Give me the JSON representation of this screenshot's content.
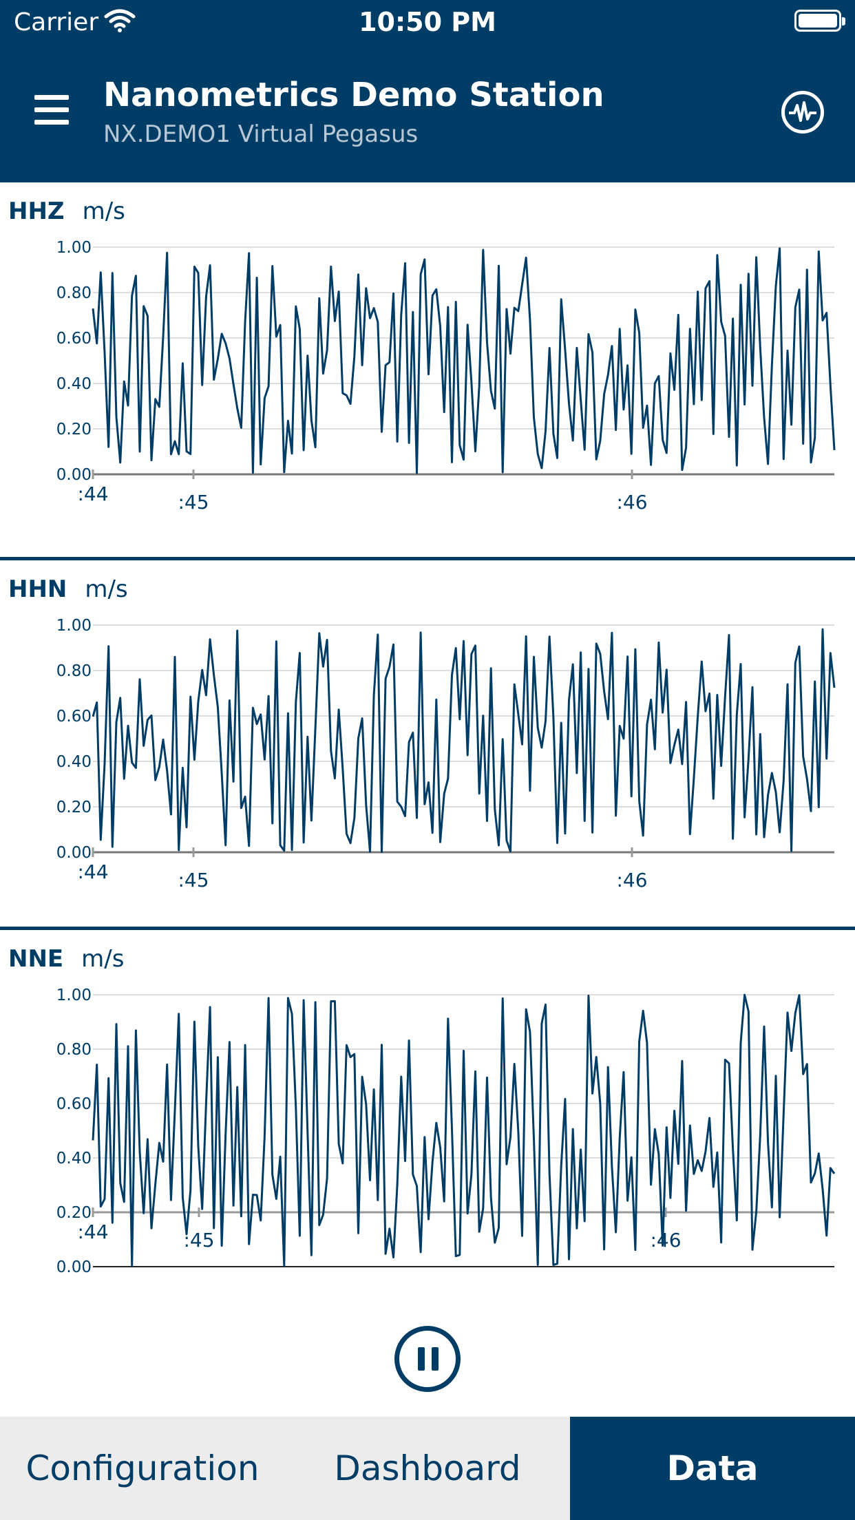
{
  "status_bar": {
    "carrier": "Carrier",
    "time": "10:50 PM"
  },
  "header": {
    "title": "Nanometrics Demo Station",
    "subtitle": "NX.DEMO1  Virtual Pegasus"
  },
  "channels": [
    {
      "name": "HHZ",
      "unit": "m/s",
      "y_ticks": [
        "1.00",
        "0.80",
        "0.60",
        "0.40",
        "0.20",
        "0.00"
      ],
      "time_ticks": [
        ":44",
        ":45",
        ":46"
      ]
    },
    {
      "name": "HHN",
      "unit": "m/s",
      "y_ticks": [
        "1.00",
        "0.80",
        "0.60",
        "0.40",
        "0.20",
        "0.00"
      ],
      "time_ticks": [
        ":44",
        ":45",
        ":46"
      ]
    },
    {
      "name": "NNE",
      "unit": "m/s",
      "y_ticks": [
        "1.00",
        "0.80",
        "0.60",
        "0.40",
        "0.20",
        "0.00"
      ],
      "time_ticks": [
        ":44",
        ":45",
        ":46"
      ]
    }
  ],
  "colors": {
    "brand": "#003d66",
    "tab_bg": "#ececec"
  },
  "tabs": [
    {
      "label": "Configuration",
      "active": false
    },
    {
      "label": "Dashboard",
      "active": false
    },
    {
      "label": "Data",
      "active": true
    }
  ]
}
